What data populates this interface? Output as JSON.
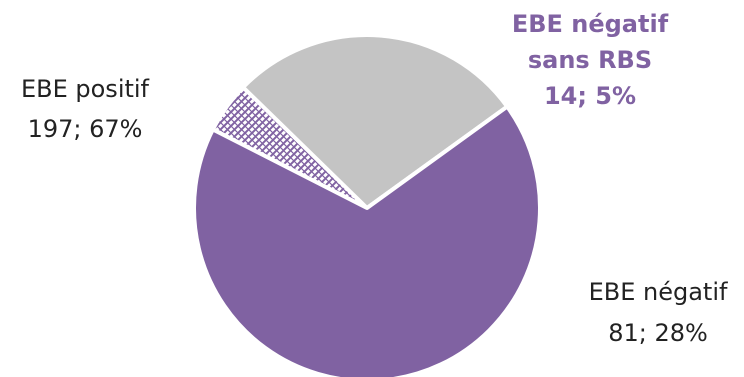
{
  "chart_data": {
    "type": "pie",
    "title": "",
    "slices": [
      {
        "name": "EBE positif",
        "count": 197,
        "percent": 67,
        "color": "#8062A2",
        "label_lines": [
          "EBE positif",
          "197; 67%"
        ],
        "label_color": "#222222",
        "label_weight": "normal",
        "pattern": "none"
      },
      {
        "name": "EBE négatif sans RBS",
        "count": 14,
        "percent": 5,
        "color": "#8062A2",
        "label_lines": [
          "EBE négatif",
          "sans RBS",
          "14; 5%"
        ],
        "label_color": "#8062A2",
        "label_weight": "bold",
        "pattern": "crosshatch"
      },
      {
        "name": "EBE négatif",
        "count": 81,
        "percent": 28,
        "color": "#C4C4C4",
        "label_lines": [
          "EBE négatif",
          "81; 28%"
        ],
        "label_color": "#222222",
        "label_weight": "normal",
        "pattern": "none"
      }
    ],
    "legend": "none",
    "data_labels": "outside"
  }
}
